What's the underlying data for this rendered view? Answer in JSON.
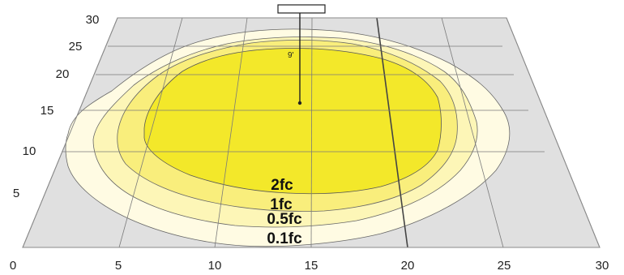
{
  "colors": {
    "floor": "#e0e0e0",
    "grid": "#7a7a7a",
    "outline": "#555555",
    "level_0_1": "#fffbe3",
    "level_0_5": "#fdf6b7",
    "level_1": "#f9ee7c",
    "level_2": "#f3e82a"
  },
  "x_ticks": [
    "0",
    "5",
    "10",
    "15",
    "20",
    "25",
    "30"
  ],
  "y_ticks": [
    "5",
    "10",
    "15",
    "20",
    "25",
    "30"
  ],
  "contours": [
    "2fc",
    "1fc",
    "0.5fc",
    "0.1fc"
  ],
  "pole": {
    "mounting_height": "9'"
  }
}
